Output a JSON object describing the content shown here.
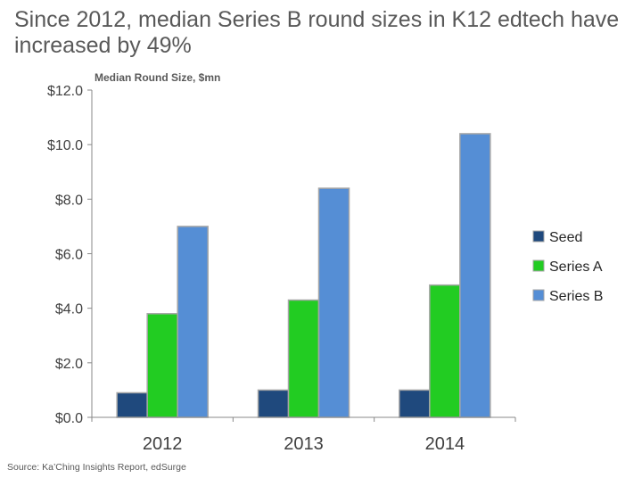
{
  "title": "Since 2012, median Series B round sizes in K12 edtech have increased by 49%",
  "source": "Source: Ka’Ching Insights Report, edSurge",
  "colors": {
    "Seed": "#1f497d",
    "Series A": "#22cc22",
    "Series B": "#558ed5",
    "axis": "#888888",
    "text": "#404040"
  },
  "chart_data": {
    "type": "bar",
    "ylabel": "Median Round Size, $mn",
    "xlabel": "",
    "categories": [
      "2012",
      "2013",
      "2014"
    ],
    "series": [
      {
        "name": "Seed",
        "values": [
          0.9,
          1.0,
          1.0
        ]
      },
      {
        "name": "Series A",
        "values": [
          3.8,
          4.3,
          4.85
        ]
      },
      {
        "name": "Series B",
        "values": [
          7.0,
          8.4,
          10.4
        ]
      }
    ],
    "ylim": [
      0,
      12
    ],
    "yticks": [
      0,
      2,
      4,
      6,
      8,
      10,
      12
    ],
    "ytick_labels": [
      "$0.0",
      "$2.0",
      "$4.0",
      "$6.0",
      "$8.0",
      "$10.0",
      "$12.0"
    ],
    "grid": false,
    "legend_position": "right"
  }
}
